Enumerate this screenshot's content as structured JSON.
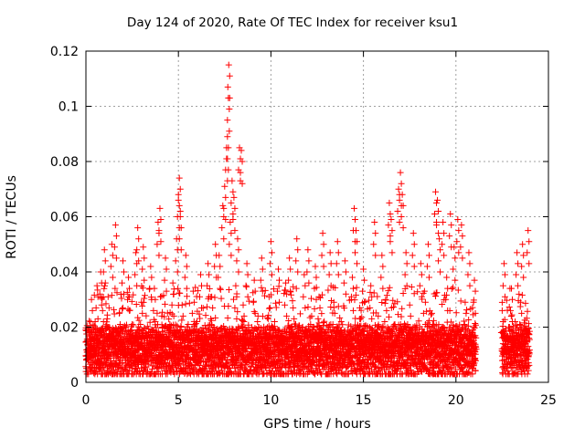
{
  "chart_data": {
    "type": "scatter",
    "title": "Day 124 of 2020, Rate Of TEC Index for receiver ksu1",
    "xlabel": "GPS time / hours",
    "ylabel": "ROTI / TECUs",
    "xlim": [
      0,
      25
    ],
    "ylim": [
      0,
      0.12
    ],
    "xticks": [
      0,
      5,
      10,
      15,
      20,
      25
    ],
    "xtick_labels": [
      "0",
      "5",
      "10",
      "15",
      "20",
      "25"
    ],
    "yticks": [
      0,
      0.02,
      0.04,
      0.06,
      0.08,
      0.1,
      0.12
    ],
    "ytick_labels": [
      "0",
      "0.02",
      "0.04",
      "0.06",
      "0.08",
      "0.1",
      "0.12"
    ],
    "grid": true,
    "legend": "none",
    "marker": "plus",
    "color": "#ff0000",
    "series": [
      {
        "points": [
          [
            0.1,
            0.012
          ],
          [
            0.2,
            0.018
          ],
          [
            0.3,
            0.03
          ],
          [
            0.4,
            0.009
          ],
          [
            0.5,
            0.022
          ],
          [
            0.6,
            0.035
          ],
          [
            0.7,
            0.014
          ],
          [
            0.8,
            0.04
          ],
          [
            0.9,
            0.026
          ],
          [
            1.0,
            0.048
          ],
          [
            1.1,
            0.011
          ],
          [
            1.2,
            0.031
          ],
          [
            1.4,
            0.05
          ],
          [
            1.5,
            0.019
          ],
          [
            1.6,
            0.057
          ],
          [
            1.8,
            0.025
          ],
          [
            2.0,
            0.044
          ],
          [
            2.1,
            0.013
          ],
          [
            2.3,
            0.038
          ],
          [
            2.5,
            0.021
          ],
          [
            2.7,
            0.047
          ],
          [
            2.8,
            0.056
          ],
          [
            3.0,
            0.029
          ],
          [
            3.1,
            0.049
          ],
          [
            3.3,
            0.016
          ],
          [
            3.5,
            0.042
          ],
          [
            3.7,
            0.034
          ],
          [
            3.9,
            0.058
          ],
          [
            4.0,
            0.063
          ],
          [
            4.1,
            0.024
          ],
          [
            4.3,
            0.045
          ],
          [
            4.5,
            0.015
          ],
          [
            4.7,
            0.036
          ],
          [
            4.9,
            0.052
          ],
          [
            5.0,
            0.068
          ],
          [
            5.05,
            0.074
          ],
          [
            5.1,
            0.06
          ],
          [
            5.2,
            0.028
          ],
          [
            5.4,
            0.046
          ],
          [
            5.6,
            0.012
          ],
          [
            5.8,
            0.033
          ],
          [
            6.0,
            0.022
          ],
          [
            6.2,
            0.039
          ],
          [
            6.4,
            0.017
          ],
          [
            6.6,
            0.043
          ],
          [
            6.8,
            0.031
          ],
          [
            7.0,
            0.05
          ],
          [
            7.2,
            0.046
          ],
          [
            7.4,
            0.064
          ],
          [
            7.5,
            0.071
          ],
          [
            7.6,
            0.085
          ],
          [
            7.65,
            0.089
          ],
          [
            7.7,
            0.103
          ],
          [
            7.72,
            0.115
          ],
          [
            7.8,
            0.058
          ],
          [
            7.9,
            0.073
          ],
          [
            8.0,
            0.067
          ],
          [
            8.1,
            0.035
          ],
          [
            8.2,
            0.052
          ],
          [
            8.3,
            0.085
          ],
          [
            8.4,
            0.084
          ],
          [
            8.5,
            0.028
          ],
          [
            8.7,
            0.043
          ],
          [
            8.9,
            0.018
          ],
          [
            9.1,
            0.037
          ],
          [
            9.3,
            0.024
          ],
          [
            9.5,
            0.045
          ],
          [
            9.7,
            0.016
          ],
          [
            9.9,
            0.031
          ],
          [
            10.0,
            0.051
          ],
          [
            10.2,
            0.022
          ],
          [
            10.4,
            0.041
          ],
          [
            10.6,
            0.014
          ],
          [
            10.8,
            0.036
          ],
          [
            11.0,
            0.045
          ],
          [
            11.2,
            0.027
          ],
          [
            11.4,
            0.052
          ],
          [
            11.6,
            0.019
          ],
          [
            11.8,
            0.039
          ],
          [
            12.0,
            0.048
          ],
          [
            12.2,
            0.024
          ],
          [
            12.4,
            0.042
          ],
          [
            12.6,
            0.031
          ],
          [
            12.8,
            0.054
          ],
          [
            13.0,
            0.017
          ],
          [
            13.2,
            0.047
          ],
          [
            13.4,
            0.029
          ],
          [
            13.6,
            0.051
          ],
          [
            13.8,
            0.022
          ],
          [
            14.0,
            0.044
          ],
          [
            14.2,
            0.013
          ],
          [
            14.4,
            0.038
          ],
          [
            14.5,
            0.063
          ],
          [
            14.6,
            0.055
          ],
          [
            14.8,
            0.027
          ],
          [
            15.0,
            0.041
          ],
          [
            15.2,
            0.016
          ],
          [
            15.4,
            0.035
          ],
          [
            15.6,
            0.058
          ],
          [
            15.8,
            0.024
          ],
          [
            16.0,
            0.046
          ],
          [
            16.2,
            0.03
          ],
          [
            16.4,
            0.065
          ],
          [
            16.5,
            0.059
          ],
          [
            16.7,
            0.021
          ],
          [
            16.9,
            0.07
          ],
          [
            17.0,
            0.076
          ],
          [
            17.1,
            0.068
          ],
          [
            17.3,
            0.047
          ],
          [
            17.5,
            0.028
          ],
          [
            17.7,
            0.054
          ],
          [
            17.9,
            0.019
          ],
          [
            18.1,
            0.043
          ],
          [
            18.3,
            0.033
          ],
          [
            18.5,
            0.05
          ],
          [
            18.7,
            0.025
          ],
          [
            18.9,
            0.069
          ],
          [
            19.0,
            0.066
          ],
          [
            19.1,
            0.052
          ],
          [
            19.3,
            0.058
          ],
          [
            19.5,
            0.038
          ],
          [
            19.7,
            0.061
          ],
          [
            19.9,
            0.049
          ],
          [
            20.1,
            0.059
          ],
          [
            20.3,
            0.057
          ],
          [
            20.5,
            0.029
          ],
          [
            20.7,
            0.047
          ],
          [
            20.9,
            0.018
          ],
          [
            21.0,
            0.037
          ],
          [
            21.1,
            0.012
          ],
          [
            22.5,
            0.026
          ],
          [
            22.6,
            0.043
          ],
          [
            22.8,
            0.016
          ],
          [
            23.0,
            0.034
          ],
          [
            23.2,
            0.022
          ],
          [
            23.3,
            0.047
          ],
          [
            23.5,
            0.029
          ],
          [
            23.6,
            0.05
          ],
          [
            23.8,
            0.019
          ],
          [
            23.9,
            0.055
          ]
        ],
        "floor_band": {
          "segments": [
            [
              0,
              21.1
            ],
            [
              22.5,
              24.0
            ]
          ],
          "y_values": [
            0.004,
            0.006,
            0.008,
            0.009,
            0.01,
            0.011,
            0.012,
            0.013,
            0.014,
            0.015,
            0.016,
            0.017,
            0.018,
            0.02
          ]
        }
      }
    ]
  }
}
